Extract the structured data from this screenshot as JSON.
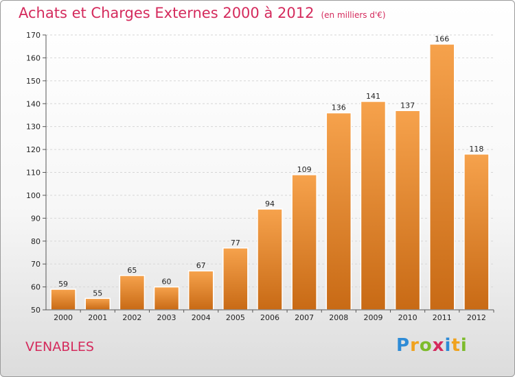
{
  "title": "Achats et Charges Externes 2000 à 2012",
  "unit": "(en milliers d'€)",
  "commune": "VENABLES",
  "logo": {
    "letters": [
      "P",
      "r",
      "o",
      "x",
      "i",
      "t",
      "i"
    ],
    "colors": [
      "#2e8bd6",
      "#f0a21e",
      "#7dbb2c",
      "#d42a5c",
      "#2e8bd6",
      "#f0a21e",
      "#7dbb2c"
    ]
  },
  "colors": {
    "bar_light": "#f6a24c",
    "bar_dark": "#c86a15",
    "title": "#d42a5c"
  },
  "chart_data": {
    "type": "bar",
    "title": "Achats et Charges Externes 2000 à 2012",
    "xlabel": "",
    "ylabel": "",
    "categories": [
      "2000",
      "2001",
      "2002",
      "2003",
      "2004",
      "2005",
      "2006",
      "2007",
      "2008",
      "2009",
      "2010",
      "2011",
      "2012"
    ],
    "values": [
      59,
      55,
      65,
      60,
      67,
      77,
      94,
      109,
      136,
      141,
      137,
      166,
      118
    ],
    "ylim": [
      50,
      170
    ],
    "yticks": [
      50,
      60,
      70,
      80,
      90,
      100,
      110,
      120,
      130,
      140,
      150,
      160,
      170
    ],
    "grid": true,
    "legend": "none"
  }
}
